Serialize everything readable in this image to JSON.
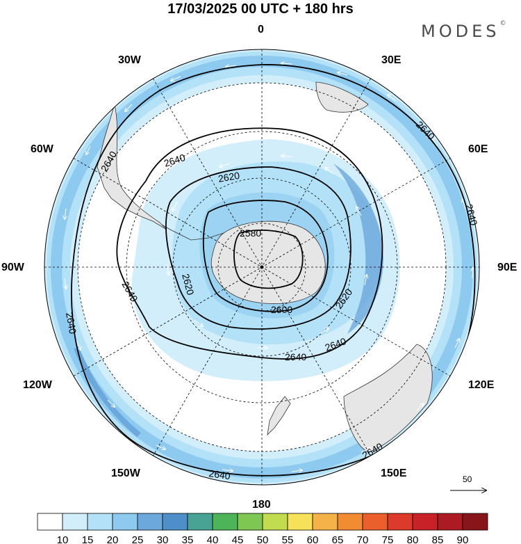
{
  "title": "17/03/2025  00 UTC  + 180 hrs",
  "brand": {
    "name": "MODES",
    "mark": "©"
  },
  "longitude_labels": {
    "n": "0",
    "s": "180",
    "w30": "30W",
    "e30": "30E",
    "w60": "60W",
    "e60": "60E",
    "w90": "90W",
    "e90": "90E",
    "w120": "120W",
    "e120": "120E",
    "w150": "150W",
    "e150": "150E"
  },
  "contour_labels": [
    "2640",
    "2640",
    "2640",
    "2640",
    "2640",
    "2640",
    "2640",
    "2640",
    "2640",
    "2640",
    "2620",
    "2620",
    "2620",
    "2600",
    "2580"
  ],
  "vector_scale": {
    "label": "50"
  },
  "colorbar": {
    "ticks": [
      "10",
      "15",
      "20",
      "25",
      "30",
      "35",
      "40",
      "45",
      "50",
      "55",
      "60",
      "65",
      "70",
      "75",
      "80",
      "85",
      "90"
    ],
    "colors": [
      "#ffffff",
      "#d2eefb",
      "#b3e1f8",
      "#8ecaef",
      "#6ca8dc",
      "#4e8fc9",
      "#48a395",
      "#4db45a",
      "#7dc752",
      "#c2dc4f",
      "#f7e15a",
      "#f5b249",
      "#f28c33",
      "#ea5f2c",
      "#dc3a2a",
      "#c82228",
      "#ac1a24",
      "#871519"
    ]
  },
  "colors": {
    "land": "#e6e6e6",
    "wind_light": "#d2eefb",
    "wind_mid": "#b3e1f8",
    "wind_strong": "#8ecaef",
    "wind_stronger": "#6ca8dc"
  }
}
